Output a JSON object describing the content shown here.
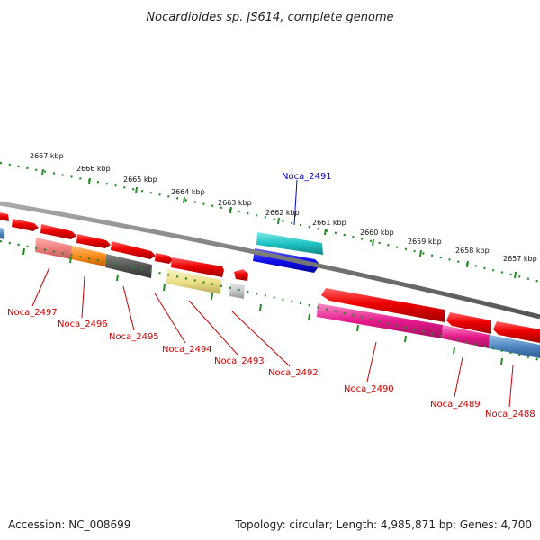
{
  "title": "Nocardioides sp. JS614, complete genome",
  "footer": {
    "accession": "Accession: NC_008699",
    "topology": "Topology: circular; Length: 4,985,871 bp; Genes: 4,700"
  },
  "ruler_labels": [
    "2667 kbp",
    "2666 kbp",
    "2665 kbp",
    "2664 kbp",
    "2663 kbp",
    "2662 kbp",
    "2661 kbp",
    "2660 kbp",
    "2659 kbp",
    "2658 kbp",
    "2657 kbp"
  ],
  "gene_labels": [
    {
      "id": "Noca_2491",
      "color": "#0000cc"
    },
    {
      "id": "Noca_2497",
      "color": "#cc0000"
    },
    {
      "id": "Noca_2496",
      "color": "#cc0000"
    },
    {
      "id": "Noca_2495",
      "color": "#cc0000"
    },
    {
      "id": "Noca_2494",
      "color": "#cc0000"
    },
    {
      "id": "Noca_2493",
      "color": "#cc0000"
    },
    {
      "id": "Noca_2492",
      "color": "#cc0000"
    },
    {
      "id": "Noca_2490",
      "color": "#cc0000"
    },
    {
      "id": "Noca_2489",
      "color": "#cc0000"
    },
    {
      "id": "Noca_2488",
      "color": "#cc0000"
    }
  ],
  "colors": {
    "cds": "#ee0000",
    "ruler": "#228b22",
    "backbone": "#777777",
    "cyan": "#22c4c4",
    "blue": "#1010ee",
    "pink": "#f08080",
    "orange": "#ff8c1a",
    "dark_gray": "#555555",
    "khaki": "#ece08a",
    "light_gray": "#c8c8c8",
    "magenta": "#e6198c",
    "steel_blue": "#4f86c2"
  }
}
